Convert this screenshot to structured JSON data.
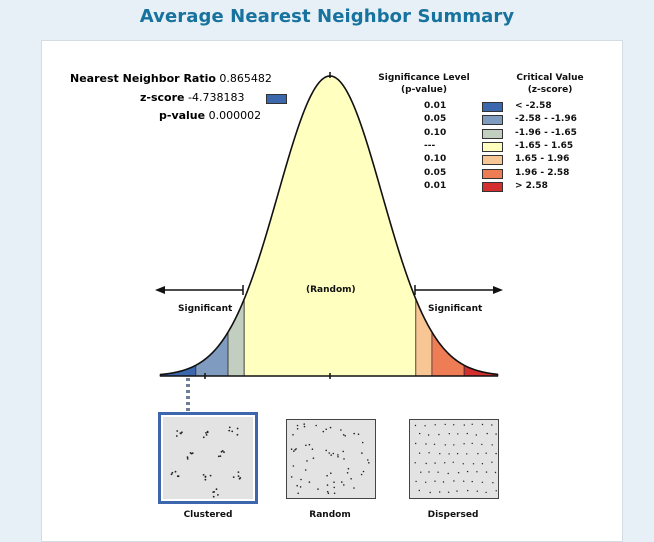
{
  "title": "Average Nearest Neighbor Summary",
  "stats": {
    "ratio_label": "Nearest Neighbor Ratio",
    "ratio_value": "0.865482",
    "zscore_label": "z-score",
    "zscore_value": "-4.738183",
    "zscore_color": "#3b68ad",
    "pvalue_label": "p-value",
    "pvalue_value": "0.000002"
  },
  "legend": {
    "sig_header_1": "Significance Level",
    "sig_header_2": "(p-value)",
    "crit_header_1": "Critical Value",
    "crit_header_2": "(z-score)",
    "rows": [
      {
        "p": "0.01",
        "z": "< -2.58",
        "color": "#3b68ad"
      },
      {
        "p": "0.05",
        "z": "-2.58 - -1.96",
        "color": "#7f9bbf"
      },
      {
        "p": "0.10",
        "z": "-1.96 - -1.65",
        "color": "#c2cfc0"
      },
      {
        "p": "---",
        "z": "-1.65 - 1.65",
        "color": "#ffffc0"
      },
      {
        "p": "0.10",
        "z": "1.65 - 1.96",
        "color": "#f8c594"
      },
      {
        "p": "0.05",
        "z": "1.96 - 2.58",
        "color": "#ee7d55"
      },
      {
        "p": "0.01",
        "z": "> 2.58",
        "color": "#d32f2f"
      }
    ]
  },
  "curve": {
    "significant_left": "Significant",
    "significant_right": "Significant",
    "random_label": "(Random)",
    "zscore": -4.738183
  },
  "samples": [
    {
      "label": "Clustered",
      "selected": true
    },
    {
      "label": "Random",
      "selected": false
    },
    {
      "label": "Dispersed",
      "selected": false
    }
  ]
}
